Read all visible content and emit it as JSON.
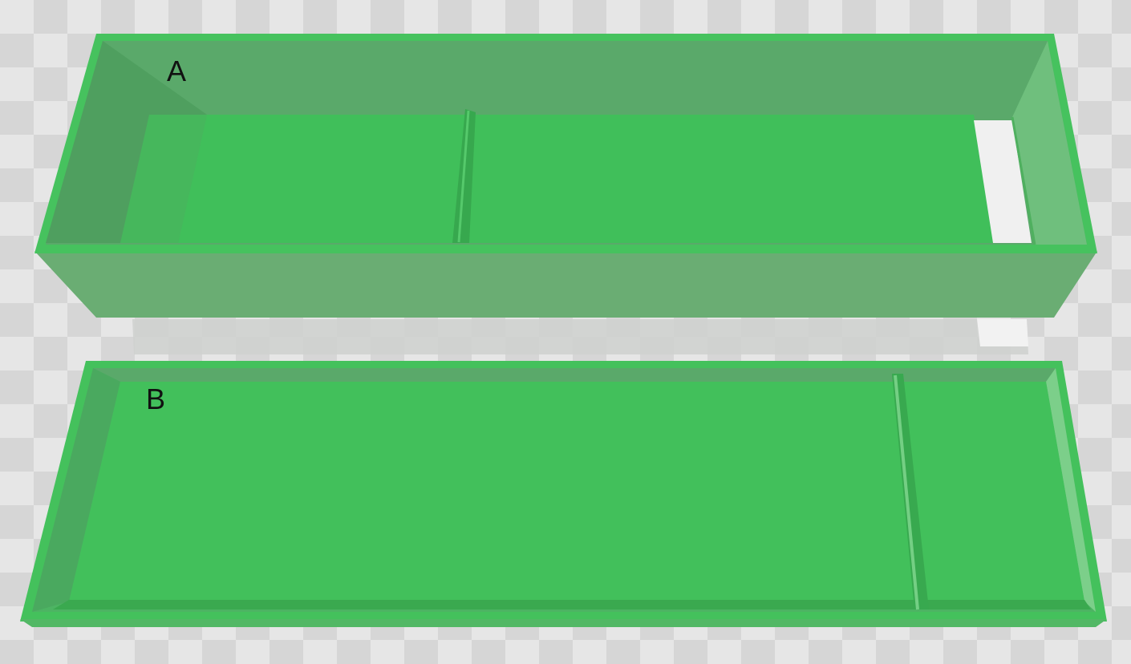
{
  "viewport": {
    "background_light": "#e6e6e6",
    "background_dark": "#d6d6d6"
  },
  "model_color": "#3fbf5a",
  "parts": {
    "a": {
      "label": "A"
    },
    "b": {
      "label": "B"
    }
  }
}
